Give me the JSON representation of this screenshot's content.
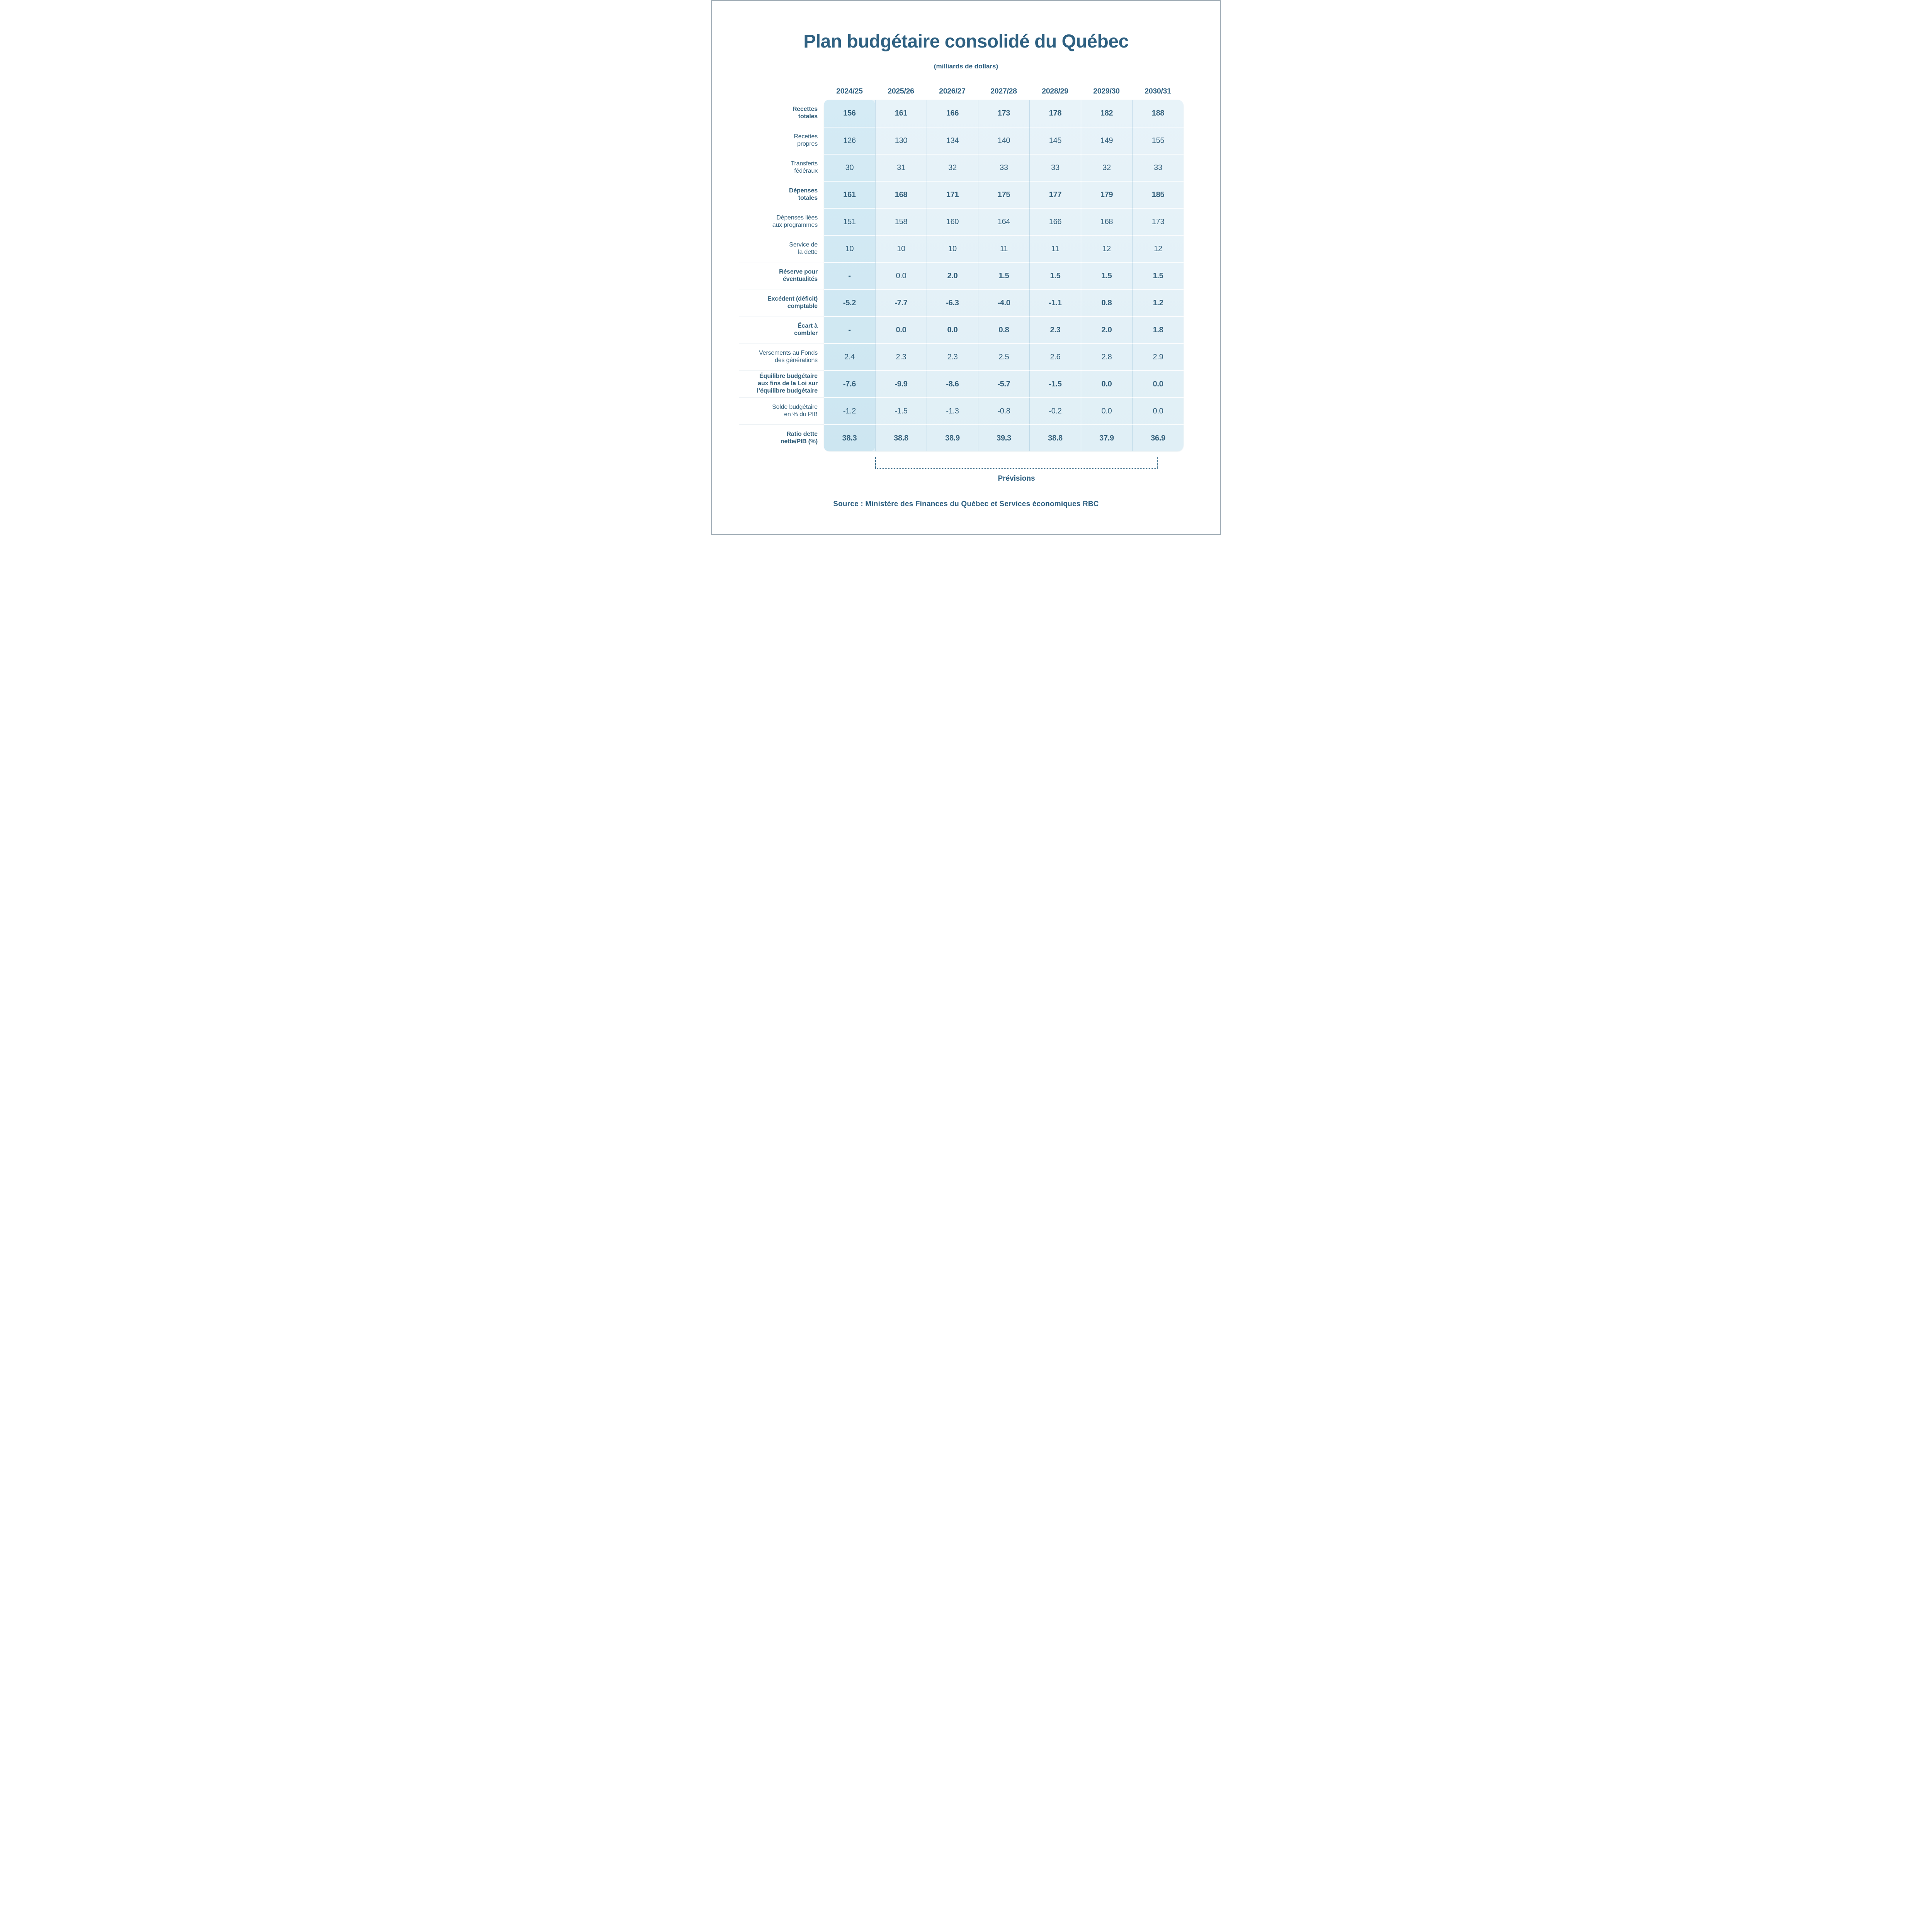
{
  "chart_data": {
    "type": "table",
    "title": "Plan budgétaire consolidé du Québec",
    "subtitle": "(milliards de dollars)",
    "columns": [
      "2024/25",
      "2025/26",
      "2026/27",
      "2027/28",
      "2028/29",
      "2029/30",
      "2030/31"
    ],
    "highlight_column": "2024/25",
    "rows": [
      {
        "label": "Recettes totales",
        "label_lines": [
          "Recettes",
          "totales"
        ],
        "bold": true,
        "values": [
          "156",
          "161",
          "166",
          "173",
          "178",
          "182",
          "188"
        ]
      },
      {
        "label": "Recettes propres",
        "label_lines": [
          "Recettes",
          "propres"
        ],
        "bold": false,
        "values": [
          "126",
          "130",
          "134",
          "140",
          "145",
          "149",
          "155"
        ]
      },
      {
        "label": "Transferts fédéraux",
        "label_lines": [
          "Transferts",
          "fédéraux"
        ],
        "bold": false,
        "values": [
          "30",
          "31",
          "32",
          "33",
          "33",
          "32",
          "33"
        ]
      },
      {
        "label": "Dépenses totales",
        "label_lines": [
          "Dépenses",
          "totales"
        ],
        "bold": true,
        "values": [
          "161",
          "168",
          "171",
          "175",
          "177",
          "179",
          "185"
        ]
      },
      {
        "label": "Dépenses liées aux programmes",
        "label_lines": [
          "Dépenses liées",
          "aux programmes"
        ],
        "bold": false,
        "values": [
          "151",
          "158",
          "160",
          "164",
          "166",
          "168",
          "173"
        ]
      },
      {
        "label": "Service de la dette",
        "label_lines": [
          "Service de",
          "la dette"
        ],
        "bold": false,
        "values": [
          "10",
          "10",
          "10",
          "11",
          "11",
          "12",
          "12"
        ]
      },
      {
        "label": "Réserve pour éventualités",
        "label_lines": [
          "Réserve pour",
          "éventualités"
        ],
        "bold": true,
        "values": [
          "-",
          "0.0",
          "2.0",
          "1.5",
          "1.5",
          "1.5",
          "1.5"
        ],
        "regular_cells": [
          1
        ]
      },
      {
        "label": "Excédent (déficit) comptable",
        "label_lines": [
          "Excédent (déficit)",
          "comptable"
        ],
        "bold": true,
        "values": [
          "-5.2",
          "-7.7",
          "-6.3",
          "-4.0",
          "-1.1",
          "0.8",
          "1.2"
        ]
      },
      {
        "label": "Écart à combler",
        "label_lines": [
          "Écart à",
          "combler"
        ],
        "bold": true,
        "values": [
          "-",
          "0.0",
          "0.0",
          "0.8",
          "2.3",
          "2.0",
          "1.8"
        ]
      },
      {
        "label": "Versements au Fonds des générations",
        "label_lines": [
          "Versements au Fonds",
          "des générations"
        ],
        "bold": false,
        "values": [
          "2.4",
          "2.3",
          "2.3",
          "2.5",
          "2.6",
          "2.8",
          "2.9"
        ]
      },
      {
        "label": "Équilibre budgétaire aux fins de la Loi sur l’équilibre budgétaire",
        "label_lines": [
          "Équilibre budgétaire",
          "aux fins de la Loi sur",
          "l’équilibre budgétaire"
        ],
        "bold": true,
        "values": [
          "-7.6",
          "-9.9",
          "-8.6",
          "-5.7",
          "-1.5",
          "0.0",
          "0.0"
        ]
      },
      {
        "label": "Solde budgétaire en % du PIB",
        "label_lines": [
          "Solde budgétaire",
          "en % du PIB"
        ],
        "bold": false,
        "values": [
          "-1.2",
          "-1.5",
          "-1.3",
          "-0.8",
          "-0.2",
          "0.0",
          "0.0"
        ]
      },
      {
        "label": "Ratio dette nette/PIB (%)",
        "label_lines": [
          "Ratio dette",
          "nette/PIB (%)"
        ],
        "bold": true,
        "values": [
          "38.3",
          "38.8",
          "38.9",
          "39.3",
          "38.8",
          "37.9",
          "36.9"
        ]
      }
    ],
    "forecast": {
      "label": "Prévisions",
      "span_columns": [
        "2025/26",
        "2030/31"
      ]
    },
    "source": "Source : Ministère des Finances du Québec et Services économiques RBC"
  },
  "colors": {
    "text": "#35617C",
    "title": "#2F6182",
    "highlight_column_bg": "#D2E9F4",
    "table_bg": "#E4F1F8",
    "bracket": "#40708C"
  }
}
